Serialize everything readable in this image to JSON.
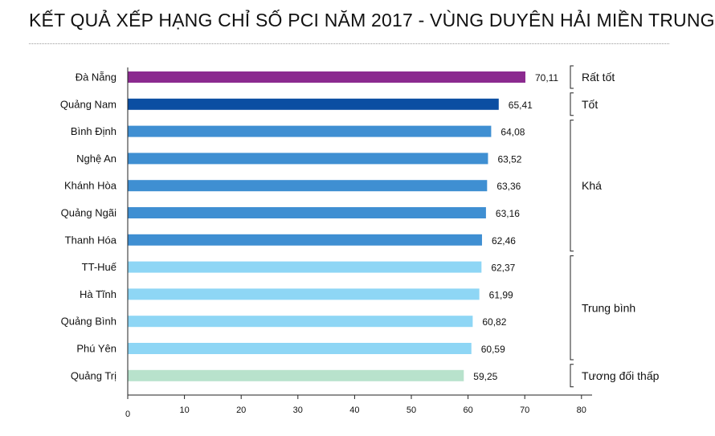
{
  "chart_data": {
    "type": "bar",
    "orientation": "horizontal",
    "title": "KẾT QUẢ XẾP HẠNG CHỈ SỐ PCI NĂM 2017 - VÙNG DUYÊN HẢI MIỀN TRUNG",
    "categories": [
      "Đà Nẵng",
      "Quảng Nam",
      "Bình Định",
      "Nghệ An",
      "Khánh Hòa",
      "Quảng Ngãi",
      "Thanh Hóa",
      "TT-Huế",
      "Hà Tĩnh",
      "Quảng Bình",
      "Phú Yên",
      "Quảng Trị"
    ],
    "values": [
      70.11,
      65.41,
      64.08,
      63.52,
      63.36,
      63.16,
      62.46,
      62.37,
      61.99,
      60.82,
      60.59,
      59.25
    ],
    "value_labels": [
      "70,11",
      "65,41",
      "64,08",
      "63,52",
      "63,36",
      "63,16",
      "62,46",
      "62,37",
      "61,99",
      "60,82",
      "60,59",
      "59,25"
    ],
    "xlim": [
      0,
      80
    ],
    "x_ticks": [
      0,
      10,
      20,
      30,
      40,
      50,
      60,
      70,
      80
    ],
    "grid": false,
    "legend": "none",
    "groups": [
      {
        "label": "Rất tốt",
        "start": 0,
        "end": 0,
        "color": "#8b2a8f"
      },
      {
        "label": "Tốt",
        "start": 1,
        "end": 1,
        "color": "#0b4ea2"
      },
      {
        "label": "Khá",
        "start": 2,
        "end": 6,
        "color": "#3f8fd2"
      },
      {
        "label": "Trung bình",
        "start": 7,
        "end": 10,
        "color": "#8ed6f5"
      },
      {
        "label": "Tương đối thấp",
        "start": 11,
        "end": 11,
        "color": "#b8e2cc"
      }
    ]
  }
}
